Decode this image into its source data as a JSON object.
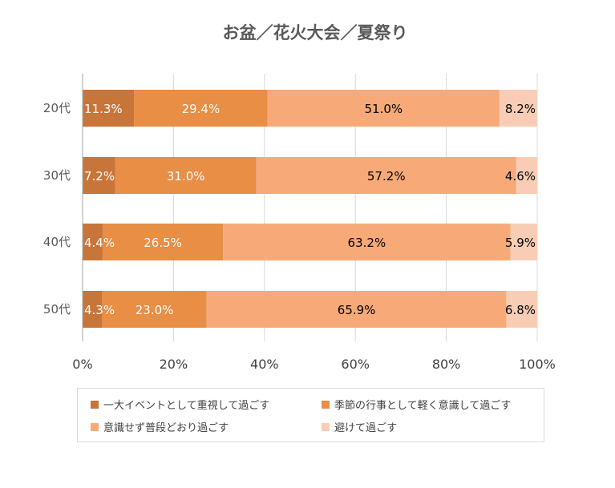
{
  "chart_data": {
    "type": "bar",
    "orientation": "horizontal",
    "stacked": "percent",
    "title": "お盆／花火大会／夏祭り",
    "categories": [
      "20代",
      "30代",
      "40代",
      "50代"
    ],
    "series": [
      {
        "name": "一大イベントとして重視して過ごす",
        "values": [
          11.3,
          7.2,
          4.4,
          4.3
        ],
        "color": "#c8753a",
        "label_color": "#ffffff"
      },
      {
        "name": "季節の行事として軽く意識して過ごす",
        "values": [
          29.4,
          31.0,
          26.5,
          23.0
        ],
        "color": "#e88e45",
        "label_color": "#ffffff"
      },
      {
        "name": "意識せず普段どおり過ごす",
        "values": [
          51.0,
          57.2,
          63.2,
          65.9
        ],
        "color": "#f7aa78",
        "label_color": "#000000"
      },
      {
        "name": "避けて過ごす",
        "values": [
          8.2,
          4.6,
          5.9,
          6.8
        ],
        "color": "#f9cdb5",
        "label_color": "#000000"
      }
    ],
    "data_labels": [
      [
        "11.3%",
        "29.4%",
        "51.0%",
        "8.2%"
      ],
      [
        "7.2%",
        "31.0%",
        "57.2%",
        "4.6%"
      ],
      [
        "4.4%",
        "26.5%",
        "63.2%",
        "5.9%"
      ],
      [
        "4.3%",
        "23.0%",
        "65.9%",
        "6.8%"
      ]
    ],
    "xlim": [
      0,
      100
    ],
    "x_ticks": [
      "0%",
      "20%",
      "40%",
      "60%",
      "80%",
      "100%"
    ],
    "grid": true,
    "legend_position": "bottom"
  }
}
